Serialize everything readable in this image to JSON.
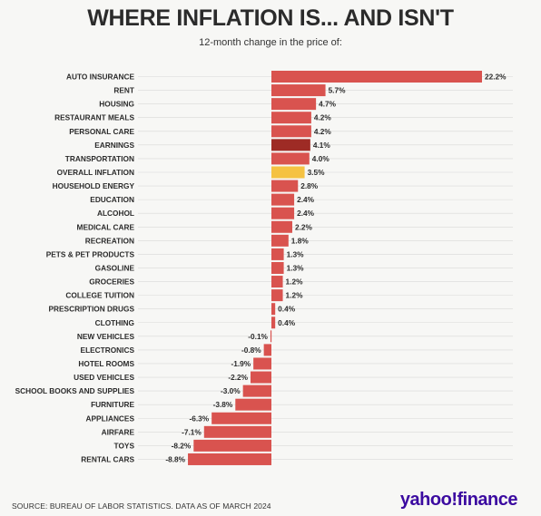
{
  "title": "WHERE INFLATION IS... AND ISN'T",
  "subtitle": "12-month change in the price of:",
  "source": "SOURCE: BUREAU OF LABOR STATISTICS. DATA AS OF MARCH 2024",
  "logo": "yahoo!finance",
  "colors": {
    "bar": "#d9534f",
    "highlight_earnings": "#9e2b25",
    "highlight_overall": "#f5c242",
    "logo": "#3b0aa0"
  },
  "chart_data": {
    "type": "bar",
    "orientation": "horizontal",
    "title": "WHERE INFLATION IS... AND ISN'T",
    "subtitle": "12-month change in the price of:",
    "unit": "%",
    "categories": [
      "AUTO INSURANCE",
      "RENT",
      "HOUSING",
      "RESTAURANT MEALS",
      "PERSONAL CARE",
      "EARNINGS",
      "TRANSPORTATION",
      "OVERALL INFLATION",
      "HOUSEHOLD ENERGY",
      "EDUCATION",
      "ALCOHOL",
      "MEDICAL CARE",
      "RECREATION",
      "PETS & PET PRODUCTS",
      "GASOLINE",
      "GROCERIES",
      "COLLEGE TUITION",
      "PRESCRIPTION DRUGS",
      "CLOTHING",
      "NEW VEHICLES",
      "ELECTRONICS",
      "HOTEL ROOMS",
      "USED VEHICLES",
      "SCHOOL BOOKS AND SUPPLIES",
      "FURNITURE",
      "APPLIANCES",
      "AIRFARE",
      "TOYS",
      "RENTAL CARS"
    ],
    "values": [
      22.2,
      5.7,
      4.7,
      4.2,
      4.2,
      4.1,
      4.0,
      3.5,
      2.8,
      2.4,
      2.4,
      2.2,
      1.8,
      1.3,
      1.3,
      1.2,
      1.2,
      0.4,
      0.4,
      -0.1,
      -0.8,
      -1.9,
      -2.2,
      -3.0,
      -3.8,
      -6.3,
      -7.1,
      -8.2,
      -8.8
    ],
    "labels": [
      "22.2%",
      "5.7%",
      "4.7%",
      "4.2%",
      "4.2%",
      "4.1%",
      "4.0%",
      "3.5%",
      "2.8%",
      "2.4%",
      "2.4%",
      "2.2%",
      "1.8%",
      "1.3%",
      "1.3%",
      "1.2%",
      "1.2%",
      "0.4%",
      "0.4%",
      "-0.1%",
      "-0.8%",
      "-1.9%",
      "-2.2%",
      "-3.0%",
      "-3.8%",
      "-6.3%",
      "-7.1%",
      "-8.2%",
      "-8.8%"
    ],
    "highlights": {
      "EARNINGS": "highlight_earnings",
      "OVERALL INFLATION": "highlight_overall"
    },
    "xlim": [
      -8.8,
      22.2
    ],
    "grid": true
  }
}
